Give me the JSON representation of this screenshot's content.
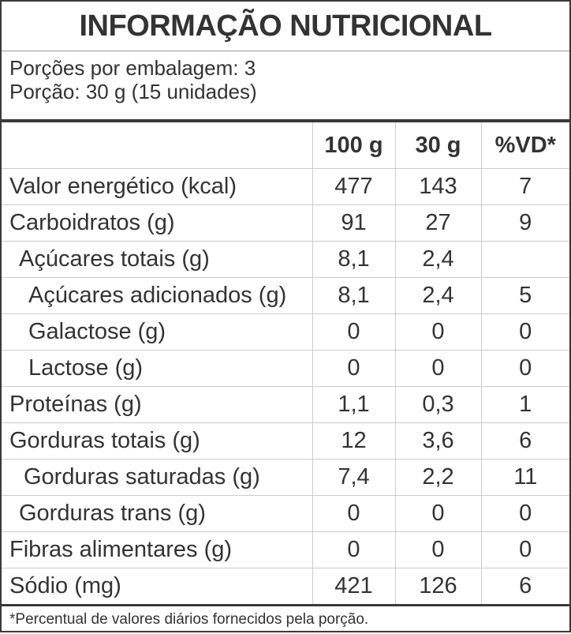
{
  "title": "INFORMAÇÃO NUTRICIONAL",
  "servings_per_package": "Porções por embalagem: 3",
  "serving_size": "Porção: 30 g (15 unidades)",
  "columns": [
    "100 g",
    "30 g",
    "%VD*"
  ],
  "rows": [
    {
      "name": "Valor energético (kcal)",
      "v100": "477",
      "v30": "143",
      "vd": "7"
    },
    {
      "name": "Carboidratos (g)",
      "v100": "91",
      "v30": "27",
      "vd": "9"
    },
    {
      "name": "Açúcares totais (g)",
      "v100": "8,1",
      "v30": "2,4",
      "vd": ""
    },
    {
      "name": "Açúcares adicionados (g)",
      "v100": "8,1",
      "v30": "2,4",
      "vd": "5"
    },
    {
      "name": "Galactose (g)",
      "v100": "0",
      "v30": "0",
      "vd": "0"
    },
    {
      "name": "Lactose (g)",
      "v100": "0",
      "v30": "0",
      "vd": "0"
    },
    {
      "name": "Proteínas (g)",
      "v100": "1,1",
      "v30": "0,3",
      "vd": "1"
    },
    {
      "name": "Gorduras totais (g)",
      "v100": "12",
      "v30": "3,6",
      "vd": "6"
    },
    {
      "name": "Gorduras saturadas (g)",
      "v100": "7,4",
      "v30": "2,2",
      "vd": "11"
    },
    {
      "name": "Gorduras trans (g)",
      "v100": "0",
      "v30": "0",
      "vd": "0"
    },
    {
      "name": "Fibras alimentares (g)",
      "v100": "0",
      "v30": "0",
      "vd": "0"
    },
    {
      "name": "Sódio (mg)",
      "v100": "421",
      "v30": "126",
      "vd": "6"
    }
  ],
  "footnote": "*Percentual de valores diários fornecidos pela porção."
}
